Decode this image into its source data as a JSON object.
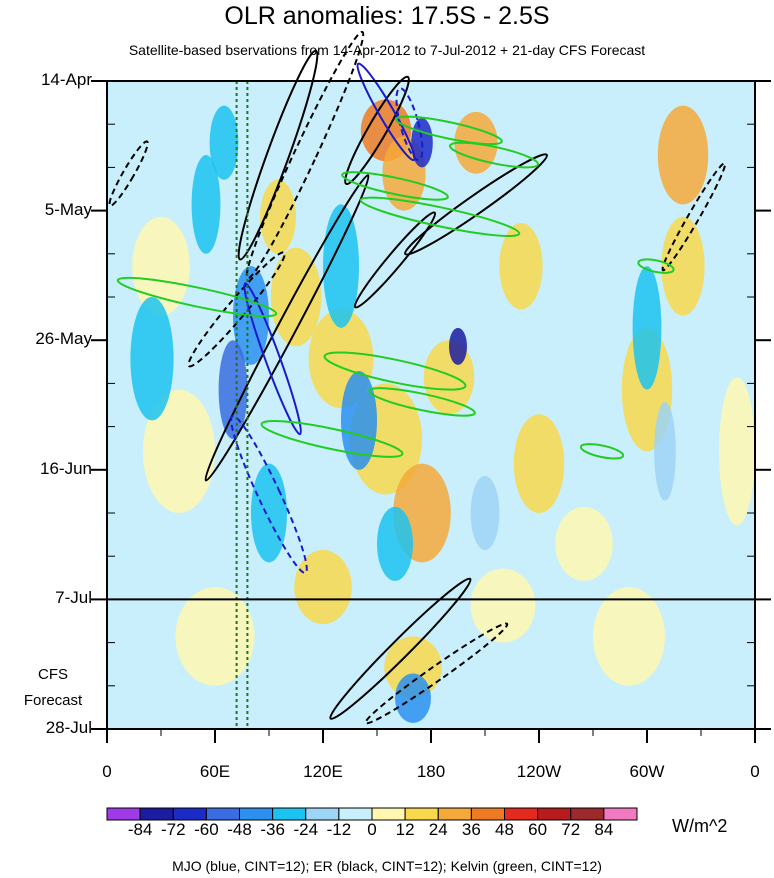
{
  "chart_data": {
    "type": "heatmap",
    "title": "OLR anomalies: 17.5S - 2.5S",
    "subtitle": "Satellite-based bservations from 14-Apr-2012 to 7-Jul-2012 + 21-day CFS Forecast",
    "x_ticks": [
      "0",
      "60E",
      "120E",
      "180",
      "120W",
      "60W",
      "0"
    ],
    "x_tick_values": [
      0,
      60,
      120,
      180,
      240,
      300,
      360
    ],
    "y_ticks": [
      "14-Apr",
      "5-May",
      "26-May",
      "16-Jun",
      "7-Jul",
      "28-Jul"
    ],
    "y_tick_values": [
      0,
      21,
      42,
      63,
      84,
      105
    ],
    "forecast_label": [
      "CFS",
      "Forecast"
    ],
    "forecast_start_day": 84,
    "colorbar": {
      "units": "W/m^2",
      "levels": [
        -84,
        -72,
        -60,
        -48,
        -36,
        -24,
        -12,
        0,
        12,
        24,
        36,
        48,
        60,
        72,
        84
      ],
      "labels": [
        "-84",
        "-72",
        "-60",
        "-48",
        "-36",
        "-24",
        "-12",
        "0",
        "12",
        "24",
        "36",
        "48",
        "60",
        "72",
        "84"
      ],
      "colors": [
        "#9f3ae6",
        "#1c1ca0",
        "#1d2bc6",
        "#3a6de0",
        "#2b90ee",
        "#1cc3f0",
        "#9ed4f5",
        "#c8effb",
        "#fff7b0",
        "#f8d84c",
        "#f5a93a",
        "#ee7a23",
        "#e42a1e",
        "#b81b1b",
        "#9c2a2a",
        "#f07ac0"
      ]
    },
    "background_color": "#c8effb",
    "contour_caption": "MJO (blue, CINT=12); ER (black, CINT=12); Kelvin (green, CINT=12)",
    "grid": false
  }
}
